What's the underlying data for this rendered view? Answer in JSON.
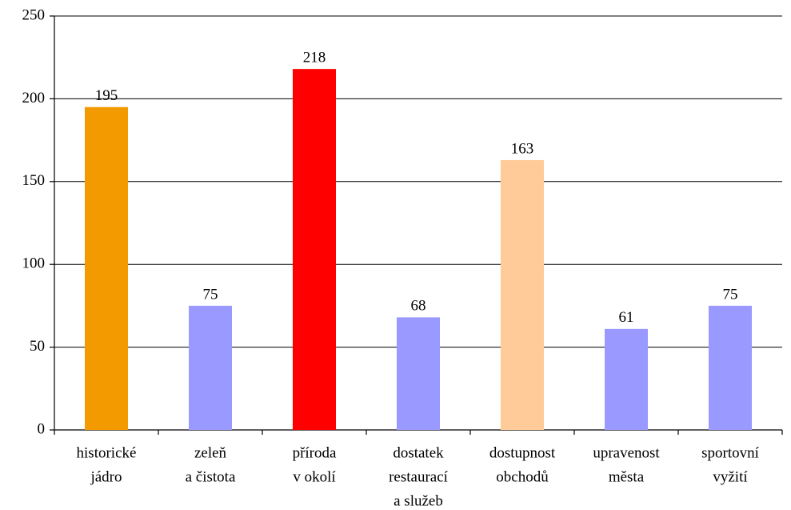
{
  "chart_data": {
    "type": "bar",
    "categories": [
      [
        "historické",
        "jádro"
      ],
      [
        "zeleň",
        "a čistota"
      ],
      [
        "příroda",
        "v okolí"
      ],
      [
        "dostatek",
        "restaurací",
        "a služeb"
      ],
      [
        "dostupnost",
        "obchodů"
      ],
      [
        "upravenost",
        "města"
      ],
      [
        "sportovní",
        "vyžití"
      ]
    ],
    "values": [
      195,
      75,
      218,
      68,
      163,
      61,
      75
    ],
    "colors": [
      "#f39a00",
      "#9999ff",
      "#ff0000",
      "#9999ff",
      "#ffcc99",
      "#9999ff",
      "#9999ff"
    ],
    "ylim": [
      0,
      250
    ],
    "yticks": [
      0,
      50,
      100,
      150,
      200,
      250
    ],
    "grid": true
  }
}
